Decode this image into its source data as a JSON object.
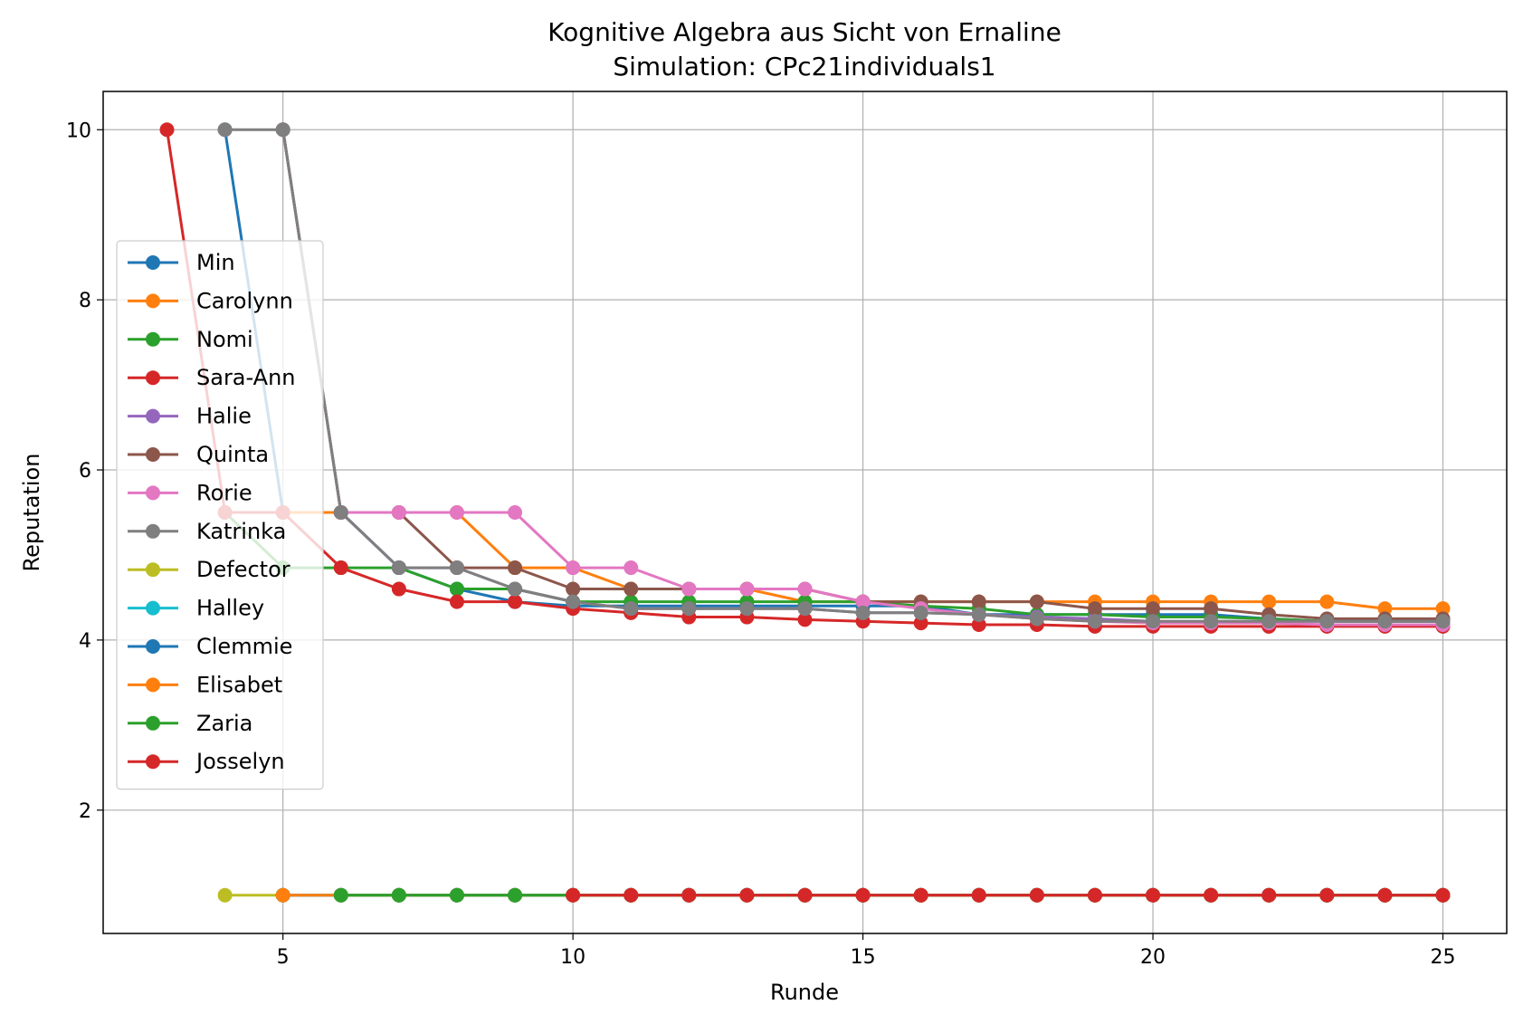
{
  "chart_data": {
    "type": "line",
    "title": "Kognitive Algebra aus Sicht von Ernaline",
    "subtitle": "Simulation: CPc21individuals1",
    "xlabel": "Runde",
    "ylabel": "Reputation",
    "xlim": [
      1.9,
      26.1
    ],
    "ylim": [
      0.55,
      10.45
    ],
    "xticks": [
      5,
      10,
      15,
      20,
      25
    ],
    "yticks": [
      2,
      4,
      6,
      8,
      10
    ],
    "grid": true,
    "legend_position": "center-left",
    "series": [
      {
        "name": "Min",
        "color": "#1f77b4",
        "x": [
          4,
          5,
          6,
          7,
          8,
          9,
          10,
          11,
          12,
          13,
          14,
          15,
          16,
          17,
          18,
          19,
          20,
          21,
          22,
          23,
          24,
          25
        ],
        "y": [
          10,
          5.5,
          5.5,
          4.85,
          4.6,
          4.45,
          4.4,
          4.4,
          4.4,
          4.4,
          4.4,
          4.4,
          4.4,
          4.3,
          4.3,
          4.3,
          4.3,
          4.3,
          4.25,
          4.22,
          4.22,
          4.22
        ]
      },
      {
        "name": "Carolynn",
        "color": "#ff7f0e",
        "x": [
          5,
          6,
          7,
          8,
          9,
          10,
          11,
          12,
          13,
          14,
          15,
          16,
          17,
          18,
          19,
          20,
          21,
          22,
          23,
          24,
          25
        ],
        "y": [
          5.5,
          5.5,
          5.5,
          5.5,
          4.85,
          4.85,
          4.6,
          4.6,
          4.6,
          4.45,
          4.45,
          4.45,
          4.45,
          4.45,
          4.45,
          4.45,
          4.45,
          4.45,
          4.45,
          4.37,
          4.37
        ]
      },
      {
        "name": "Nomi",
        "color": "#2ca02c",
        "x": [
          4,
          5,
          6,
          7,
          8,
          9,
          10,
          11,
          12,
          13,
          14,
          15,
          16,
          17,
          18,
          19,
          20,
          21,
          22,
          23,
          24,
          25
        ],
        "y": [
          5.5,
          4.85,
          4.85,
          4.85,
          4.6,
          4.6,
          4.45,
          4.45,
          4.45,
          4.45,
          4.45,
          4.45,
          4.4,
          4.37,
          4.3,
          4.3,
          4.27,
          4.27,
          4.25,
          4.22,
          4.22,
          4.22
        ]
      },
      {
        "name": "Sara-Ann",
        "color": "#d62728",
        "x": [
          3,
          4,
          5,
          6,
          7,
          8,
          9,
          10,
          11,
          12,
          13,
          14,
          15,
          16,
          17,
          18,
          19,
          20,
          21,
          22,
          23,
          24,
          25
        ],
        "y": [
          10,
          5.5,
          5.5,
          4.85,
          4.6,
          4.45,
          4.45,
          4.37,
          4.32,
          4.27,
          4.27,
          4.24,
          4.22,
          4.2,
          4.18,
          4.18,
          4.16,
          4.16,
          4.16,
          4.16,
          4.16,
          4.16,
          4.16
        ]
      },
      {
        "name": "Halie",
        "color": "#9467bd",
        "x": [
          5,
          6,
          7,
          8,
          9,
          10,
          11,
          12,
          13,
          14,
          15,
          16,
          17,
          18,
          19,
          20,
          21,
          22,
          23,
          24,
          25
        ],
        "y": [
          10,
          5.5,
          4.85,
          4.85,
          4.6,
          4.45,
          4.37,
          4.37,
          4.37,
          4.37,
          4.32,
          4.32,
          4.3,
          4.27,
          4.25,
          4.22,
          4.22,
          4.22,
          4.22,
          4.22,
          4.22
        ]
      },
      {
        "name": "Quinta",
        "color": "#8c564b",
        "x": [
          5,
          6,
          7,
          8,
          9,
          10,
          11,
          12,
          13,
          14,
          15,
          16,
          17,
          18,
          19,
          20,
          21,
          22,
          23,
          24,
          25
        ],
        "y": [
          10,
          5.5,
          5.5,
          4.85,
          4.85,
          4.6,
          4.6,
          4.6,
          4.6,
          4.6,
          4.45,
          4.45,
          4.45,
          4.45,
          4.37,
          4.37,
          4.37,
          4.3,
          4.25,
          4.25,
          4.25
        ]
      },
      {
        "name": "Rorie",
        "color": "#e377c2",
        "x": [
          6,
          7,
          8,
          9,
          10,
          11,
          12,
          13,
          14,
          15,
          16,
          17,
          18,
          19,
          20,
          21,
          22,
          23,
          24,
          25
        ],
        "y": [
          5.5,
          5.5,
          5.5,
          5.5,
          4.85,
          4.85,
          4.6,
          4.6,
          4.6,
          4.45,
          4.37,
          4.3,
          4.25,
          4.22,
          4.2,
          4.2,
          4.2,
          4.18,
          4.18,
          4.18
        ]
      },
      {
        "name": "Katrinka",
        "color": "#7f7f7f",
        "x": [
          4,
          5,
          6,
          7,
          8,
          9,
          10,
          11,
          12,
          13,
          14,
          15,
          16,
          17,
          18,
          19,
          20,
          21,
          22,
          23,
          24,
          25
        ],
        "y": [
          10,
          10,
          5.5,
          4.85,
          4.85,
          4.6,
          4.45,
          4.37,
          4.37,
          4.37,
          4.37,
          4.32,
          4.32,
          4.3,
          4.25,
          4.22,
          4.22,
          4.22,
          4.22,
          4.22,
          4.22,
          4.22
        ]
      },
      {
        "name": "Defector",
        "color": "#bcbd22",
        "x": [
          4,
          5,
          6,
          7,
          8,
          9,
          10,
          11,
          12,
          13,
          14,
          15,
          16,
          17,
          18,
          19,
          20,
          21,
          22,
          23,
          24,
          25
        ],
        "y": [
          1,
          1,
          1,
          1,
          1,
          1,
          1,
          1,
          1,
          1,
          1,
          1,
          1,
          1,
          1,
          1,
          1,
          1,
          1,
          1,
          1,
          1
        ]
      },
      {
        "name": "Halley",
        "color": "#17becf",
        "x": [
          5,
          6,
          7,
          8,
          9,
          10,
          11,
          12,
          13,
          14,
          15,
          16,
          17,
          18,
          19,
          20,
          21,
          22,
          23,
          24,
          25
        ],
        "y": [
          1,
          1,
          1,
          1,
          1,
          1,
          1,
          1,
          1,
          1,
          1,
          1,
          1,
          1,
          1,
          1,
          1,
          1,
          1,
          1,
          1
        ]
      },
      {
        "name": "Clemmie",
        "color": "#1f77b4",
        "x": [
          5,
          6,
          7,
          8,
          9,
          10,
          11,
          12,
          13,
          14,
          15,
          16,
          17,
          18,
          19,
          20,
          21,
          22,
          23,
          24,
          25
        ],
        "y": [
          1,
          1,
          1,
          1,
          1,
          1,
          1,
          1,
          1,
          1,
          1,
          1,
          1,
          1,
          1,
          1,
          1,
          1,
          1,
          1,
          1
        ]
      },
      {
        "name": "Elisabet",
        "color": "#ff7f0e",
        "x": [
          5,
          6,
          7,
          8,
          9,
          10,
          11,
          12,
          13,
          14,
          15,
          16,
          17,
          18,
          19,
          20,
          21,
          22,
          23,
          24,
          25
        ],
        "y": [
          1,
          1,
          1,
          1,
          1,
          1,
          1,
          1,
          1,
          1,
          1,
          1,
          1,
          1,
          1,
          1,
          1,
          1,
          1,
          1,
          1
        ]
      },
      {
        "name": "Zaria",
        "color": "#2ca02c",
        "x": [
          6,
          7,
          8,
          9,
          10,
          11,
          12,
          13,
          14,
          15,
          16,
          17,
          18,
          19,
          20,
          21,
          22,
          23,
          24,
          25
        ],
        "y": [
          1,
          1,
          1,
          1,
          1,
          1,
          1,
          1,
          1,
          1,
          1,
          1,
          1,
          1,
          1,
          1,
          1,
          1,
          1,
          1
        ]
      },
      {
        "name": "Josselyn",
        "color": "#d62728",
        "x": [
          10,
          11,
          12,
          13,
          14,
          15,
          16,
          17,
          18,
          19,
          20,
          21,
          22,
          23,
          24,
          25
        ],
        "y": [
          1,
          1,
          1,
          1,
          1,
          1,
          1,
          1,
          1,
          1,
          1,
          1,
          1,
          1,
          1,
          1
        ]
      }
    ]
  }
}
